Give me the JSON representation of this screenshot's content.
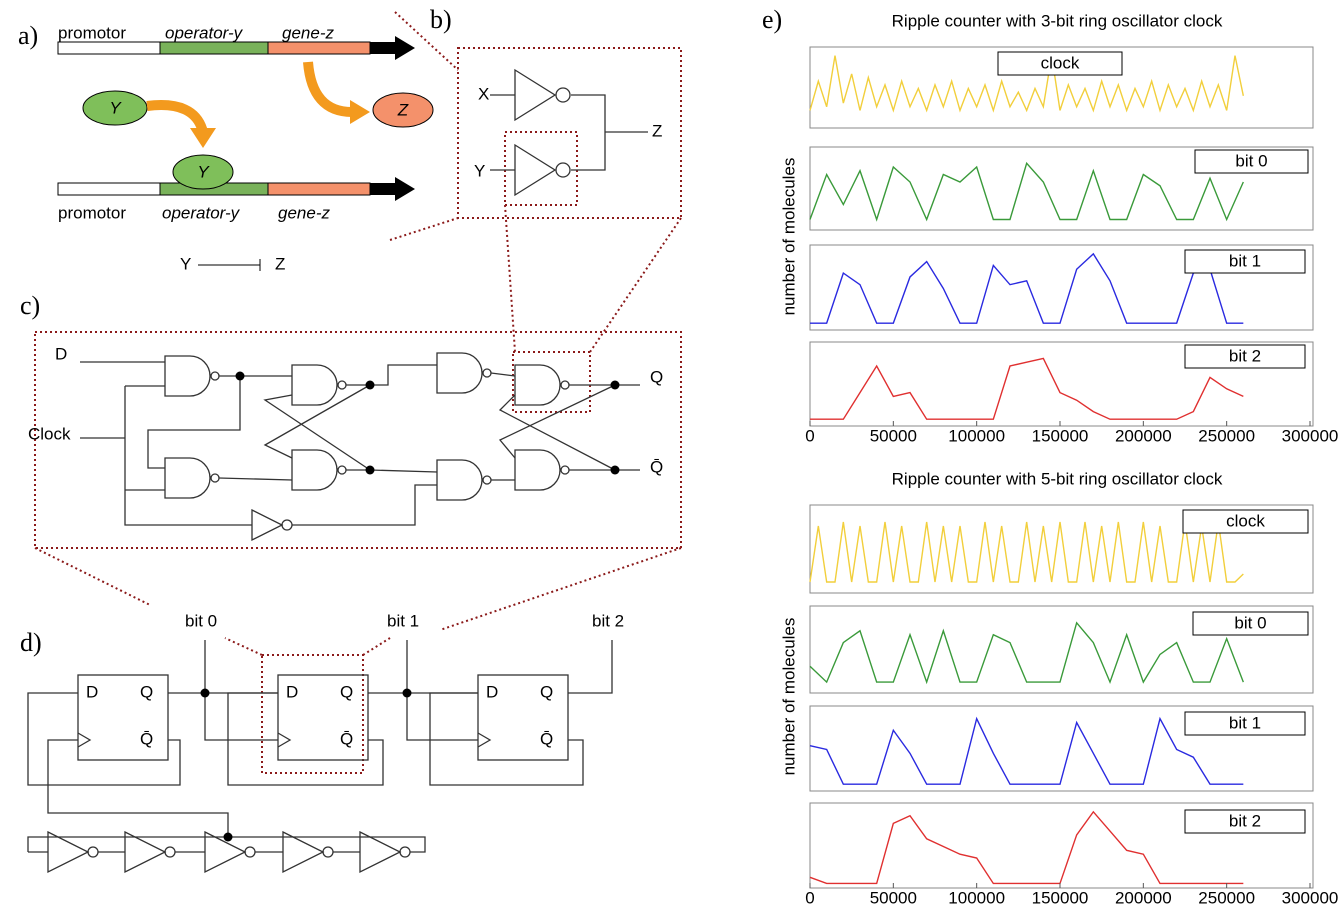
{
  "panels": {
    "a": {
      "label": "a)",
      "top": {
        "promoter": "promotor",
        "operator": "operator-y",
        "gene": "gene-z"
      },
      "repressor": "Y",
      "product": "Z",
      "bound_repressor": "Y",
      "bottom": {
        "promoter": "promotor",
        "operator": "operator-y",
        "gene": "gene-z"
      },
      "relation": {
        "from": "Y",
        "to": "Z"
      }
    },
    "b": {
      "label": "b)",
      "inputs": [
        "X",
        "Y"
      ],
      "output": "Z"
    },
    "c": {
      "label": "c)",
      "inputs": [
        "D",
        "Clock"
      ],
      "outputs": [
        "Q",
        "Q̄"
      ]
    },
    "d": {
      "label": "d)",
      "bits": [
        "bit 0",
        "bit 1",
        "bit 2"
      ],
      "flip_flop_pins": [
        "D",
        "Q",
        "Q̄"
      ]
    },
    "e": {
      "label": "e)"
    }
  },
  "chart_data": [
    {
      "type": "line",
      "title": "Ripple counter with 3-bit ring oscillator clock",
      "ylabel": "number of molecules",
      "xlim": [
        0,
        300000
      ],
      "ylim": [
        0,
        100
      ],
      "x": [
        0,
        5000,
        10000,
        15000,
        20000,
        25000,
        30000,
        35000,
        40000,
        45000,
        50000,
        55000,
        60000,
        65000,
        70000,
        75000,
        80000,
        85000,
        90000,
        95000,
        100000,
        105000,
        110000,
        115000,
        120000,
        125000,
        130000,
        135000,
        140000,
        145000,
        150000,
        155000,
        160000,
        165000,
        170000,
        175000,
        180000,
        185000,
        190000,
        195000,
        200000,
        205000,
        210000,
        215000,
        220000,
        225000,
        230000,
        235000,
        240000,
        245000,
        250000,
        255000,
        260000
      ],
      "series": [
        {
          "name": "clock",
          "color": "#f2cf3c",
          "values": [
            20,
            60,
            25,
            95,
            30,
            70,
            20,
            65,
            25,
            55,
            20,
            60,
            25,
            50,
            20,
            55,
            25,
            60,
            20,
            50,
            25,
            55,
            20,
            60,
            25,
            45,
            20,
            50,
            25,
            95,
            20,
            55,
            25,
            50,
            20,
            60,
            25,
            55,
            20,
            50,
            25,
            60,
            20,
            55,
            25,
            50,
            20,
            60,
            25,
            55,
            20,
            95,
            40
          ]
        }
      ]
    },
    {
      "type": "line",
      "xlim": [
        0,
        300000
      ],
      "ylim": [
        0,
        100
      ],
      "x": [
        0,
        10000,
        20000,
        30000,
        40000,
        50000,
        60000,
        70000,
        80000,
        90000,
        100000,
        110000,
        120000,
        130000,
        140000,
        150000,
        160000,
        170000,
        180000,
        190000,
        200000,
        210000,
        220000,
        230000,
        240000,
        250000,
        260000
      ],
      "series": [
        {
          "name": "bit 0",
          "color": "#3a9a3a",
          "values": [
            10,
            70,
            30,
            75,
            10,
            80,
            60,
            10,
            70,
            60,
            80,
            10,
            10,
            85,
            60,
            10,
            10,
            75,
            10,
            10,
            70,
            55,
            10,
            10,
            65,
            10,
            60
          ]
        }
      ]
    },
    {
      "type": "line",
      "xlim": [
        0,
        300000
      ],
      "ylim": [
        0,
        100
      ],
      "x": [
        0,
        10000,
        20000,
        30000,
        40000,
        50000,
        60000,
        70000,
        80000,
        90000,
        100000,
        110000,
        120000,
        130000,
        140000,
        150000,
        160000,
        170000,
        180000,
        190000,
        200000,
        210000,
        220000,
        230000,
        240000,
        250000,
        260000
      ],
      "series": [
        {
          "name": "bit 1",
          "color": "#2a2ae0",
          "values": [
            5,
            5,
            70,
            55,
            5,
            5,
            65,
            85,
            50,
            5,
            5,
            80,
            55,
            60,
            5,
            5,
            75,
            95,
            60,
            5,
            5,
            5,
            5,
            70,
            75,
            5,
            5
          ]
        }
      ]
    },
    {
      "type": "line",
      "xlim": [
        0,
        300000
      ],
      "ylim": [
        0,
        100
      ],
      "xticks": [
        0,
        50000,
        100000,
        150000,
        200000,
        250000,
        300000
      ],
      "x": [
        0,
        10000,
        20000,
        30000,
        40000,
        50000,
        60000,
        70000,
        80000,
        90000,
        100000,
        110000,
        120000,
        130000,
        140000,
        150000,
        160000,
        170000,
        180000,
        190000,
        200000,
        210000,
        220000,
        230000,
        240000,
        250000,
        260000
      ],
      "series": [
        {
          "name": "bit 2",
          "color": "#e03030",
          "values": [
            5,
            5,
            5,
            40,
            75,
            35,
            40,
            5,
            5,
            5,
            5,
            5,
            75,
            80,
            85,
            40,
            30,
            15,
            5,
            5,
            5,
            5,
            5,
            15,
            60,
            45,
            35
          ]
        }
      ]
    },
    {
      "type": "line",
      "title": "Ripple counter with 5-bit ring oscillator clock",
      "ylabel": "number of molecules",
      "xlim": [
        0,
        300000
      ],
      "ylim": [
        0,
        100
      ],
      "x": [
        0,
        5000,
        10000,
        15000,
        20000,
        25000,
        30000,
        35000,
        40000,
        45000,
        50000,
        55000,
        60000,
        65000,
        70000,
        75000,
        80000,
        85000,
        90000,
        95000,
        100000,
        105000,
        110000,
        115000,
        120000,
        125000,
        130000,
        135000,
        140000,
        145000,
        150000,
        155000,
        160000,
        165000,
        170000,
        175000,
        180000,
        185000,
        190000,
        195000,
        200000,
        205000,
        210000,
        215000,
        220000,
        225000,
        230000,
        235000,
        240000,
        245000,
        250000,
        255000,
        260000
      ],
      "series": [
        {
          "name": "clock",
          "color": "#f2cf3c",
          "values": [
            10,
            80,
            10,
            10,
            85,
            10,
            80,
            10,
            10,
            85,
            10,
            80,
            10,
            10,
            85,
            10,
            80,
            10,
            80,
            10,
            10,
            85,
            10,
            80,
            10,
            10,
            85,
            10,
            80,
            10,
            85,
            10,
            10,
            85,
            10,
            80,
            10,
            85,
            10,
            10,
            85,
            10,
            80,
            10,
            10,
            85,
            10,
            80,
            10,
            85,
            10,
            10,
            20
          ]
        }
      ]
    },
    {
      "type": "line",
      "xlim": [
        0,
        300000
      ],
      "ylim": [
        0,
        100
      ],
      "x": [
        0,
        10000,
        20000,
        30000,
        40000,
        50000,
        60000,
        70000,
        80000,
        90000,
        100000,
        110000,
        120000,
        130000,
        140000,
        150000,
        160000,
        170000,
        180000,
        190000,
        200000,
        210000,
        220000,
        230000,
        240000,
        250000,
        260000
      ],
      "series": [
        {
          "name": "bit 0",
          "color": "#3a9a3a",
          "values": [
            30,
            10,
            60,
            75,
            10,
            10,
            70,
            10,
            75,
            10,
            10,
            70,
            60,
            10,
            10,
            10,
            85,
            60,
            10,
            70,
            10,
            45,
            60,
            10,
            10,
            65,
            10
          ]
        }
      ]
    },
    {
      "type": "line",
      "xlim": [
        0,
        300000
      ],
      "ylim": [
        0,
        100
      ],
      "x": [
        0,
        10000,
        20000,
        30000,
        40000,
        50000,
        60000,
        70000,
        80000,
        90000,
        100000,
        110000,
        120000,
        130000,
        140000,
        150000,
        160000,
        170000,
        180000,
        190000,
        200000,
        210000,
        220000,
        230000,
        240000,
        250000,
        260000
      ],
      "series": [
        {
          "name": "bit 1",
          "color": "#2a2ae0",
          "values": [
            55,
            50,
            5,
            5,
            5,
            75,
            45,
            5,
            5,
            5,
            90,
            45,
            5,
            5,
            5,
            5,
            85,
            45,
            5,
            5,
            5,
            90,
            50,
            40,
            5,
            5,
            5
          ]
        }
      ]
    },
    {
      "type": "line",
      "xlim": [
        0,
        300000
      ],
      "ylim": [
        0,
        100
      ],
      "xticks": [
        0,
        50000,
        100000,
        150000,
        200000,
        250000,
        300000
      ],
      "x": [
        0,
        10000,
        20000,
        30000,
        40000,
        50000,
        60000,
        70000,
        80000,
        90000,
        100000,
        110000,
        120000,
        130000,
        140000,
        150000,
        160000,
        170000,
        180000,
        190000,
        200000,
        210000,
        220000,
        230000,
        240000,
        250000,
        260000
      ],
      "series": [
        {
          "name": "bit 2",
          "color": "#e03030",
          "values": [
            10,
            2,
            2,
            2,
            2,
            80,
            90,
            60,
            50,
            40,
            35,
            2,
            2,
            2,
            2,
            2,
            65,
            95,
            70,
            45,
            40,
            2,
            2,
            2,
            2,
            2,
            2
          ]
        }
      ]
    }
  ]
}
